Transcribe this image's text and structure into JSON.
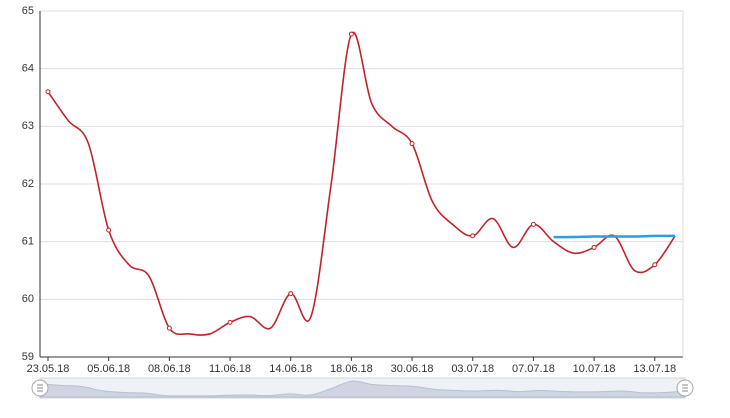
{
  "chart_data": {
    "type": "line",
    "categories": [
      "23.05.18",
      null,
      null,
      "05.06.18",
      null,
      null,
      "08.06.18",
      null,
      null,
      "11.06.18",
      null,
      null,
      "14.06.18",
      null,
      null,
      "18.06.18",
      null,
      null,
      "30.06.18",
      null,
      null,
      "03.07.18",
      null,
      null,
      "07.07.18",
      null,
      null,
      "10.07.18",
      null,
      null,
      "13.07.18",
      null
    ],
    "series": [
      {
        "color": "#c1232b",
        "values": [
          63.6,
          63.1,
          62.7,
          61.2,
          60.6,
          60.4,
          59.5,
          59.4,
          59.4,
          59.6,
          59.7,
          59.5,
          60.1,
          59.7,
          62.0,
          64.6,
          63.4,
          63.0,
          62.7,
          61.7,
          61.3,
          61.1,
          61.4,
          60.9,
          61.3,
          61.0,
          60.8,
          60.9,
          61.1,
          60.5,
          60.6,
          61.1
        ]
      },
      {
        "color": "#2e9be6",
        "values": [
          null,
          null,
          null,
          null,
          null,
          null,
          null,
          null,
          null,
          null,
          null,
          null,
          null,
          null,
          null,
          null,
          null,
          null,
          null,
          null,
          null,
          null,
          null,
          null,
          null,
          61.08,
          61.08,
          61.09,
          61.09,
          61.09,
          61.1,
          61.1
        ]
      }
    ],
    "ylim": [
      59,
      65
    ],
    "yticks": [
      59,
      60,
      61,
      62,
      63,
      64,
      65
    ],
    "grid": true
  }
}
